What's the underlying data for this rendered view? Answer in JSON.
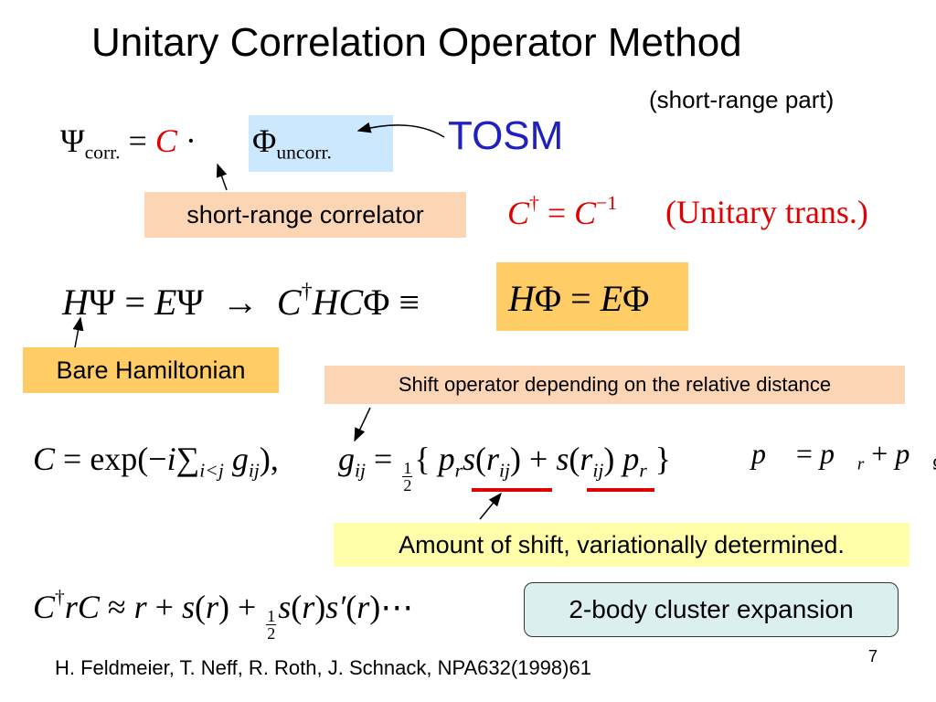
{
  "slide": {
    "title": "Unitary Correlation Operator Method",
    "subtitle": "(short-range part)",
    "tosm": "TOSM",
    "labels": {
      "short_range_correlator": "short-range correlator",
      "bare_hamiltonian": "Bare Hamiltonian",
      "shift_operator": "Shift operator depending on the relative distance",
      "amount_of_shift": "Amount of shift, variationally determined.",
      "cluster_expansion": "2-body cluster expansion"
    },
    "citation": "H. Feldmeier, T. Neff, R. Roth, J. Schnack, NPA632(1998)61",
    "page_number": "7",
    "equations": [
      {
        "tokens": [
          {
            "text": "Ψ"
          },
          {
            "text": "corr.",
            "pos": "sub"
          },
          {
            "text": " = "
          },
          {
            "text": "C",
            "italic": true,
            "color": "#e00000"
          },
          {
            "text": " · "
          }
        ]
      },
      {
        "tokens": [
          {
            "text": "Φ"
          },
          {
            "text": "uncorr.",
            "pos": "sub"
          }
        ]
      },
      {
        "tokens": [
          {
            "text": "C",
            "italic": true,
            "color": "#e00000"
          },
          {
            "text": "†",
            "pos": "sup",
            "color": "#e00000"
          },
          {
            "text": " = ",
            "color": "#e00000"
          },
          {
            "text": "C",
            "italic": true,
            "color": "#e00000"
          },
          {
            "text": "−1",
            "pos": "sup",
            "color": "#e00000"
          }
        ]
      },
      {
        "tokens": [
          {
            "text": "(Unitary trans.)",
            "color": "#e00000"
          }
        ]
      },
      {
        "tokens": [
          {
            "text": "H",
            "italic": true
          },
          {
            "text": "Ψ = "
          },
          {
            "text": "E",
            "italic": true
          },
          {
            "text": "Ψ  →  "
          },
          {
            "text": "C",
            "italic": true
          },
          {
            "text": "†",
            "pos": "sup"
          },
          {
            "text": "HC",
            "italic": true
          },
          {
            "text": "Φ ≡ "
          }
        ]
      },
      {
        "tokens": [
          {
            "text": "H",
            "italic": true
          },
          {
            "text": "Φ = "
          },
          {
            "text": "E",
            "italic": true
          },
          {
            "text": "Φ"
          }
        ]
      },
      {
        "tokens": [
          {
            "text": "C",
            "italic": true
          },
          {
            "text": " = exp(−"
          },
          {
            "text": "i",
            "italic": true
          },
          {
            "text": "∑"
          },
          {
            "text": "i<j",
            "pos": "sub",
            "italic": true
          },
          {
            "text": " g",
            "italic": true
          },
          {
            "text": "ij",
            "pos": "sub",
            "italic": true
          },
          {
            "text": "),"
          }
        ]
      },
      {
        "tokens": [
          {
            "text": "g",
            "italic": true
          },
          {
            "text": "ij",
            "pos": "sub",
            "italic": true
          },
          {
            "text": " = "
          },
          {
            "num": "1",
            "den": "2"
          },
          {
            "text": "{ "
          },
          {
            "text": "p",
            "italic": true
          },
          {
            "text": "r",
            "pos": "sub",
            "italic": true
          },
          {
            "text": "s",
            "italic": true
          },
          {
            "text": "("
          },
          {
            "text": "r",
            "italic": true
          },
          {
            "text": "ij",
            "pos": "sub",
            "italic": true
          },
          {
            "text": ") + "
          },
          {
            "text": "s",
            "italic": true
          },
          {
            "text": "("
          },
          {
            "text": "r",
            "italic": true
          },
          {
            "text": "ij",
            "pos": "sub",
            "italic": true
          },
          {
            "text": ") "
          },
          {
            "text": "p",
            "italic": true
          },
          {
            "text": "r",
            "pos": "sub",
            "italic": true
          },
          {
            "text": " }"
          }
        ]
      },
      {
        "tokens": [
          {
            "text": "p⃗",
            "italic": true
          },
          {
            "text": " = "
          },
          {
            "text": "p⃗",
            "italic": true
          },
          {
            "text": "r",
            "pos": "sub",
            "italic": true
          },
          {
            "text": " + "
          },
          {
            "text": "p⃗",
            "italic": true
          },
          {
            "text": "Ω",
            "pos": "sub"
          }
        ]
      },
      {
        "tokens": [
          {
            "text": "C",
            "italic": true
          },
          {
            "text": "†",
            "pos": "sup"
          },
          {
            "text": "rC",
            "italic": true
          },
          {
            "text": " ≈ "
          },
          {
            "text": "r",
            "italic": true
          },
          {
            "text": " + "
          },
          {
            "text": "s",
            "italic": true
          },
          {
            "text": "("
          },
          {
            "text": "r",
            "italic": true
          },
          {
            "text": ") + "
          },
          {
            "num": "1",
            "den": "2"
          },
          {
            "text": "s",
            "italic": true
          },
          {
            "text": "("
          },
          {
            "text": "r",
            "italic": true
          },
          {
            "text": ")"
          },
          {
            "text": "s′",
            "italic": true
          },
          {
            "text": "("
          },
          {
            "text": "r",
            "italic": true
          },
          {
            "text": ")⋯"
          }
        ]
      }
    ]
  }
}
